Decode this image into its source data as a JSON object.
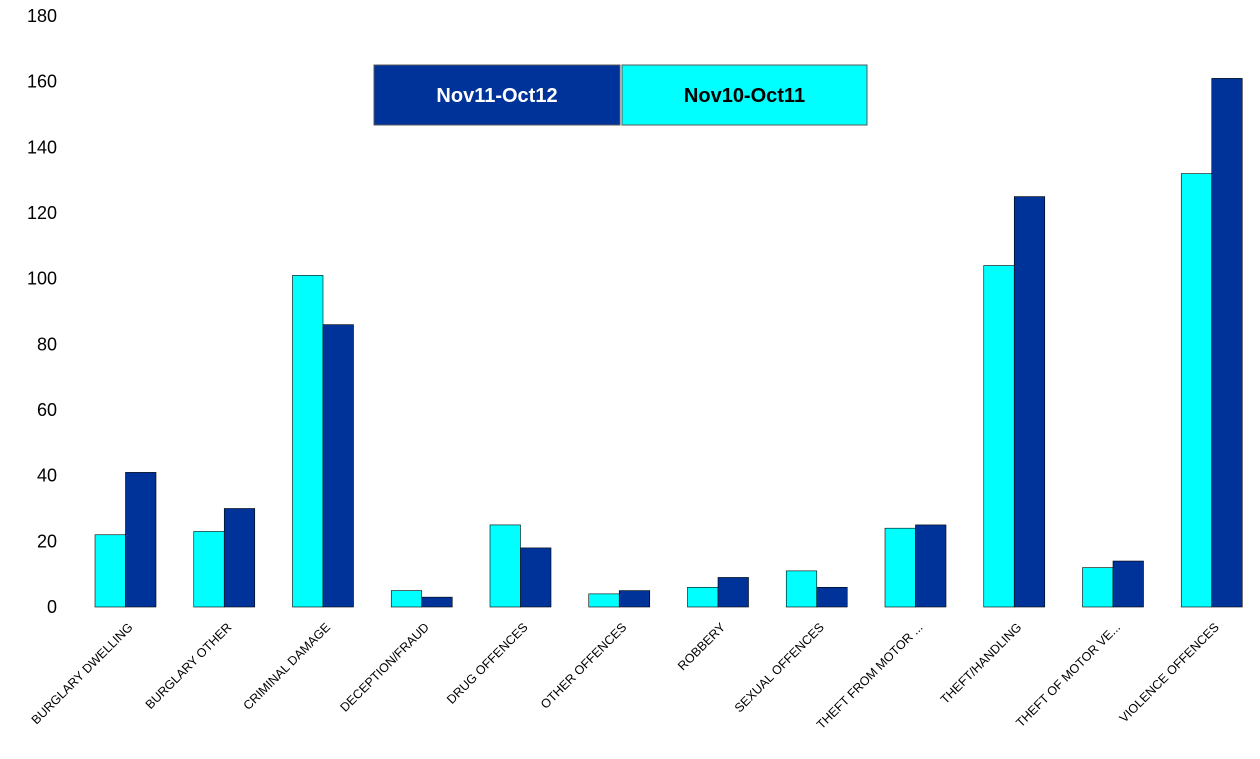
{
  "chart_data": {
    "type": "bar",
    "title": "",
    "xlabel": "",
    "ylabel": "",
    "ylim": [
      0,
      180
    ],
    "yticks": [
      0,
      20,
      40,
      60,
      80,
      100,
      120,
      140,
      160,
      180
    ],
    "grid": false,
    "legend_placement": "top-center",
    "categories": [
      "BURGLARY DWELLING",
      "BURGLARY OTHER",
      "CRIMINAL DAMAGE",
      "DECEPTION/FRAUD",
      "DRUG OFFENCES",
      "OTHER OFFENCES",
      "ROBBERY",
      "SEXUAL OFFENCES",
      "THEFT FROM MOTOR ...",
      "THEFT/HANDLING",
      "THEFT OF MOTOR VE...",
      "VIOLENCE OFFENCES"
    ],
    "series": [
      {
        "name": "Nov10-Oct11",
        "color": "#00FFFF",
        "text_color": "#000000",
        "values": [
          22,
          23,
          101,
          5,
          25,
          4,
          6,
          11,
          24,
          104,
          12,
          132
        ]
      },
      {
        "name": "Nov11-Oct12",
        "color": "#003399",
        "text_color": "#FFFFFF",
        "values": [
          41,
          30,
          86,
          3,
          18,
          5,
          9,
          6,
          25,
          125,
          14,
          161
        ]
      }
    ],
    "legend_order": [
      "Nov11-Oct12",
      "Nov10-Oct11"
    ]
  }
}
